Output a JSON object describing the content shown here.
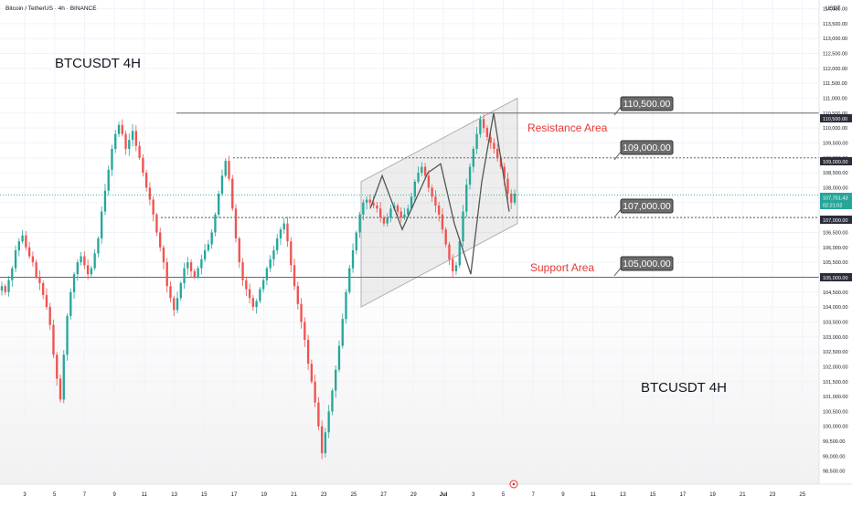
{
  "header": {
    "symbol_line": "Bitcoin / TetherUS · 4h · BINANCE"
  },
  "axis": {
    "currency": "USDT"
  },
  "annotations": {
    "title_top_left": "BTCUSDT 4H",
    "title_bottom_right": "BTCUSDT 4H",
    "resistance_label": "Resistance Area",
    "support_label": "Support Area",
    "level_110500": "110,500.00",
    "level_109000": "109,000.00",
    "level_107000": "107,000.00",
    "level_105000": "105,000.00"
  },
  "price_tags": {
    "lvl_110500": "110,500.00",
    "lvl_109000": "109,000.00",
    "lvl_107000": "107,000.00",
    "lvl_105000": "105,000.00",
    "last_price": "107,751.43",
    "countdown": "02:21:02"
  },
  "colors": {
    "up": "#26a69a",
    "down": "#ef5350",
    "text": "#131722",
    "annotation_red": "#e53935",
    "grid": "#f0f3fa",
    "tag_bg": "#6b6b6b",
    "channel": "#cfcfcf"
  },
  "chart_data": {
    "type": "candlestick",
    "title": "Bitcoin / TetherUS · 4h · BINANCE",
    "y_unit": "USDT",
    "ylim": [
      97850,
      114400
    ],
    "yticks": [
      "98,000.00",
      "98,500.00",
      "99,000.00",
      "99,500.00",
      "100,000.00",
      "100,500.00",
      "101,000.00",
      "101,500.00",
      "102,000.00",
      "102,500.00",
      "103,000.00",
      "103,500.00",
      "104,000.00",
      "104,500.00",
      "105,000.00",
      "105,500.00",
      "106,000.00",
      "106,500.00",
      "107,000.00",
      "107,500.00",
      "108,000.00",
      "108,500.00",
      "109,000.00",
      "109,500.00",
      "110,000.00",
      "110,500.00",
      "111,000.00",
      "111,500.00",
      "112,000.00",
      "112,500.00",
      "113,000.00",
      "113,500.00",
      "114,000.00"
    ],
    "xticks": [
      "3",
      "5",
      "7",
      "9",
      "11",
      "13",
      "15",
      "17",
      "19",
      "21",
      "23",
      "25",
      "27",
      "29",
      "Jul",
      "3",
      "5",
      "7",
      "9",
      "11",
      "13",
      "15",
      "17",
      "19",
      "21",
      "23",
      "25"
    ],
    "levels": [
      110500,
      109000,
      107000,
      105000
    ],
    "last_price": 107751.43,
    "closes": [
      104700,
      104500,
      104900,
      105300,
      105900,
      106200,
      106400,
      106000,
      105700,
      105500,
      105000,
      104800,
      104400,
      104000,
      103400,
      102400,
      101600,
      100900,
      102400,
      103700,
      104500,
      105100,
      105500,
      105700,
      105400,
      105100,
      105300,
      105800,
      106300,
      107200,
      107900,
      108600,
      109300,
      109800,
      110100,
      109800,
      109300,
      109600,
      109900,
      109400,
      109000,
      108500,
      108000,
      107600,
      107100,
      106500,
      106000,
      105500,
      104700,
      104300,
      103900,
      104300,
      104800,
      105300,
      105500,
      105200,
      105000,
      105300,
      105600,
      105900,
      106100,
      106500,
      107100,
      107800,
      108400,
      108900,
      108300,
      107300,
      106300,
      105500,
      104900,
      104600,
      104300,
      104000,
      104200,
      104600,
      104900,
      105300,
      105600,
      105900,
      106300,
      106600,
      106800,
      106200,
      105400,
      104700,
      104100,
      103500,
      102900,
      102100,
      101500,
      100800,
      100000,
      99100,
      99800,
      100500,
      101200,
      101900,
      102700,
      103600,
      104500,
      105300,
      105900,
      106500,
      107100,
      107500,
      107600,
      107500,
      107400,
      107300,
      107000,
      106800,
      107000,
      107300,
      107400,
      107200,
      107000,
      107100,
      107300,
      107700,
      108200,
      108500,
      108700,
      108400,
      108000,
      107700,
      107400,
      107100,
      106600,
      106100,
      105600,
      105200,
      105400,
      106200,
      107200,
      108100,
      108700,
      109300,
      109800,
      110300,
      110000,
      109700,
      109500,
      109300,
      109000,
      108700,
      108300,
      107800,
      107500,
      107800
    ]
  }
}
